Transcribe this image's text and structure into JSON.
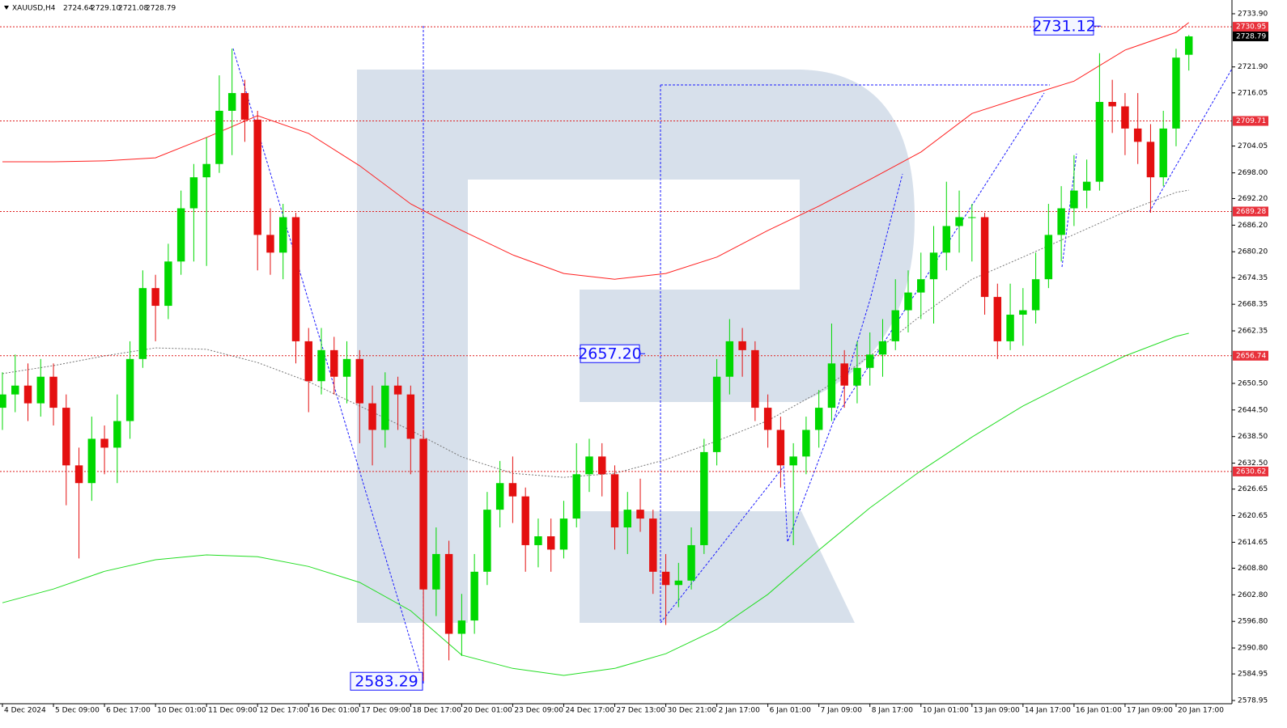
{
  "chart_data": {
    "type": "candlestick",
    "header": {
      "symbol": "XAUUSD,H4",
      "quote": [
        2724.64,
        {
          "value": 2729.1,
          "label": "2729.10"
        },
        2721.08,
        2728.79
      ]
    },
    "xlim": [
      -0.19,
      96.38
    ],
    "ylim": [
      2578.22,
      2737.0
    ],
    "yticks": [
      {
        "value": 2733.9,
        "label": "2733.90"
      },
      {
        "value": 2721.9,
        "label": "2721.90"
      },
      {
        "value": 2716.05,
        "label": "2716.05"
      },
      {
        "value": 2704.05,
        "label": "2704.05"
      },
      {
        "value": 2698.0,
        "label": "2698.00"
      },
      {
        "value": 2692.2,
        "label": "2692.20"
      },
      {
        "value": 2686.2,
        "label": "2686.20"
      },
      {
        "value": 2680.2,
        "label": "2680.20"
      },
      {
        "value": 2674.35,
        "label": "2674.35"
      },
      {
        "value": 2668.35,
        "label": "2668.35"
      },
      {
        "value": 2662.35,
        "label": "2662.35"
      },
      {
        "value": 2650.5,
        "label": "2650.50"
      },
      {
        "value": 2644.5,
        "label": "2644.50"
      },
      {
        "value": 2638.5,
        "label": "2638.50"
      },
      {
        "value": 2632.5,
        "label": "2632.50"
      },
      {
        "value": 2626.65,
        "label": "2626.65"
      },
      {
        "value": 2620.65,
        "label": "2620.65"
      },
      {
        "value": 2614.65,
        "label": "2614.65"
      },
      {
        "value": 2608.8,
        "label": "2608.80"
      },
      {
        "value": 2602.8,
        "label": "2602.80"
      },
      {
        "value": 2596.8,
        "label": "2596.80"
      },
      {
        "value": 2590.8,
        "label": "2590.80"
      },
      {
        "value": 2584.95,
        "label": "2584.95"
      },
      {
        "value": 2578.95,
        "label": "2578.95"
      }
    ],
    "xticks": [
      {
        "value": 0,
        "label": "4 Dec 2024"
      },
      {
        "value": 4,
        "label": "5 Dec 09:00"
      },
      {
        "value": 8,
        "label": "6 Dec 17:00"
      },
      {
        "value": 12,
        "label": "10 Dec 01:00"
      },
      {
        "value": 16,
        "label": "11 Dec 09:00"
      },
      {
        "value": 20,
        "label": "12 Dec 17:00"
      },
      {
        "value": 24,
        "label": "16 Dec 01:00"
      },
      {
        "value": 28,
        "label": "17 Dec 09:00"
      },
      {
        "value": 32,
        "label": "18 Dec 17:00"
      },
      {
        "value": 36,
        "label": "20 Dec 01:00"
      },
      {
        "value": 40,
        "label": "23 Dec 09:00"
      },
      {
        "value": 44,
        "label": "24 Dec 17:00"
      },
      {
        "value": 48,
        "label": "27 Dec 13:00"
      },
      {
        "value": 52,
        "label": "30 Dec 21:00"
      },
      {
        "value": 56,
        "label": "2 Jan 17:00"
      },
      {
        "value": 60,
        "label": "6 Jan 01:00"
      },
      {
        "value": 64,
        "label": "7 Jan 09:00"
      },
      {
        "value": 68,
        "label": "8 Jan 17:00"
      },
      {
        "value": 72,
        "label": "10 Jan 01:00"
      },
      {
        "value": 76,
        "label": "13 Jan 09:00"
      },
      {
        "value": 80,
        "label": "14 Jan 17:00"
      },
      {
        "value": 84,
        "label": "16 Jan 01:00"
      },
      {
        "value": 88,
        "label": "17 Jan 09:00"
      },
      {
        "value": 92,
        "label": "20 Jan 17:00"
      }
    ],
    "up_color": "#00d800",
    "down_color": "#e41010",
    "candles": [
      [
        2645,
        2653,
        2640,
        2648
      ],
      [
        2648,
        2657,
        2644,
        2650
      ],
      [
        2650,
        2655,
        2642,
        2646
      ],
      [
        2646,
        2656,
        2643,
        2652
      ],
      [
        2652,
        2655,
        2641,
        2645
      ],
      [
        2645,
        2648,
        2623,
        2632
      ],
      [
        2632,
        2636,
        2611,
        2628
      ],
      [
        2628,
        2643,
        2624,
        2638
      ],
      [
        2638,
        2641,
        2630,
        2636
      ],
      [
        2636,
        2648,
        2628,
        2642
      ],
      [
        2642,
        2660,
        2638,
        2656
      ],
      [
        2656,
        2676,
        2654,
        2672
      ],
      [
        2672,
        2675,
        2660,
        2668
      ],
      [
        2668,
        2682,
        2665,
        2678
      ],
      [
        2678,
        2694,
        2675,
        2690
      ],
      [
        2690,
        2700,
        2678,
        2697
      ],
      [
        2697,
        2706,
        2677,
        2700
      ],
      [
        2700,
        2720,
        2698,
        2712
      ],
      [
        2712,
        2726,
        2702,
        2716
      ],
      [
        2716,
        2719,
        2705,
        2710
      ],
      [
        2710,
        2712,
        2676,
        2684
      ],
      [
        2684,
        2690,
        2675,
        2680
      ],
      [
        2680,
        2691,
        2674,
        2688
      ],
      [
        2688,
        2689,
        2655,
        2660
      ],
      [
        2660,
        2663,
        2644,
        2651
      ],
      [
        2651,
        2663,
        2648,
        2658
      ],
      [
        2658,
        2661,
        2648,
        2652
      ],
      [
        2652,
        2660,
        2646,
        2656
      ],
      [
        2656,
        2658,
        2637,
        2646
      ],
      [
        2646,
        2650,
        2632,
        2640
      ],
      [
        2640,
        2653,
        2636,
        2650
      ],
      [
        2650,
        2652,
        2640,
        2648
      ],
      [
        2648,
        2650,
        2630,
        2638
      ],
      [
        2638,
        2640,
        2583.3,
        2604
      ],
      [
        2604,
        2618,
        2598,
        2612
      ],
      [
        2612,
        2615,
        2588,
        2594
      ],
      [
        2594,
        2603,
        2589,
        2597
      ],
      [
        2597,
        2612,
        2594,
        2608
      ],
      [
        2608,
        2626,
        2605,
        2622
      ],
      [
        2622,
        2633,
        2618,
        2628
      ],
      [
        2628,
        2634,
        2619,
        2625
      ],
      [
        2625,
        2627,
        2608,
        2614
      ],
      [
        2614,
        2620,
        2609,
        2616
      ],
      [
        2616,
        2620,
        2608,
        2613
      ],
      [
        2613,
        2624,
        2611,
        2620
      ],
      [
        2620,
        2637,
        2618,
        2630
      ],
      [
        2630,
        2638,
        2626,
        2634
      ],
      [
        2634,
        2637,
        2625,
        2630
      ],
      [
        2630,
        2632,
        2613,
        2618
      ],
      [
        2618,
        2626,
        2612,
        2622
      ],
      [
        2622,
        2629,
        2617,
        2620
      ],
      [
        2620,
        2622,
        2603,
        2608
      ],
      [
        2608,
        2612,
        2596,
        2605
      ],
      [
        2605,
        2610,
        2600,
        2606
      ],
      [
        2606,
        2618,
        2604,
        2614
      ],
      [
        2614,
        2638,
        2612,
        2635
      ],
      [
        2635,
        2656,
        2632,
        2652
      ],
      [
        2652,
        2665,
        2648,
        2660
      ],
      [
        2660,
        2663,
        2652,
        2658
      ],
      [
        2658,
        2660,
        2642,
        2645
      ],
      [
        2645,
        2648,
        2636,
        2640
      ],
      [
        2640,
        2643,
        2627,
        2632
      ],
      [
        2632,
        2637,
        2614,
        2634
      ],
      [
        2634,
        2643,
        2630,
        2640
      ],
      [
        2640,
        2649,
        2636,
        2645
      ],
      [
        2645,
        2664,
        2642,
        2655
      ],
      [
        2655,
        2658,
        2645,
        2650
      ],
      [
        2650,
        2660,
        2646,
        2654
      ],
      [
        2654,
        2662,
        2650,
        2657
      ],
      [
        2657,
        2665,
        2652,
        2660
      ],
      [
        2660,
        2674,
        2658,
        2667
      ],
      [
        2667,
        2676,
        2662,
        2671
      ],
      [
        2671,
        2680,
        2665,
        2674
      ],
      [
        2674,
        2686,
        2664,
        2680
      ],
      [
        2680,
        2696,
        2676,
        2686
      ],
      [
        2686,
        2694,
        2680,
        2688
      ],
      [
        2688,
        2691,
        2678,
        2688
      ],
      [
        2688,
        2689,
        2666,
        2670
      ],
      [
        2670,
        2673,
        2656,
        2660
      ],
      [
        2660,
        2673,
        2658,
        2666
      ],
      [
        2666,
        2672,
        2659,
        2667
      ],
      [
        2667,
        2680,
        2664,
        2674
      ],
      [
        2674,
        2691,
        2672,
        2684
      ],
      [
        2684,
        2695,
        2678,
        2690
      ],
      [
        2690,
        2702,
        2686,
        2694
      ],
      [
        2694,
        2701,
        2690,
        2696
      ],
      [
        2696,
        2725,
        2694,
        2714
      ],
      [
        2714,
        2719,
        2707,
        2713
      ],
      [
        2713,
        2716,
        2702,
        2708
      ],
      [
        2708,
        2716,
        2700,
        2705
      ],
      [
        2705,
        2709,
        2689,
        2697
      ],
      [
        2697,
        2712,
        2695,
        2708
      ],
      [
        2708,
        2726,
        2704,
        2724
      ],
      [
        2724.64,
        2729.1,
        2721.08,
        2728.79
      ]
    ],
    "lines": [
      {
        "color": "#ff2020",
        "style": "solid",
        "x": [
          0,
          4,
          8,
          12,
          16,
          20,
          24,
          28,
          32,
          36,
          40,
          44,
          48,
          52,
          56,
          60,
          64,
          68,
          72,
          76,
          80,
          84,
          88,
          92,
          93
        ],
        "values": [
          2700.5,
          2700.5,
          2700.7,
          2701.4,
          2706.0,
          2710.9,
          2706.9,
          2699.6,
          2691.0,
          2685.0,
          2679.5,
          2675.3,
          2674.0,
          2675.3,
          2679.0,
          2685.0,
          2690.5,
          2696.5,
          2702.7,
          2711.4,
          2715.1,
          2718.7,
          2725.7,
          2729.7,
          2731.9
        ]
      },
      {
        "color": "#22dd22",
        "style": "solid",
        "x": [
          0,
          4,
          8,
          12,
          16,
          20,
          24,
          28,
          32,
          36,
          40,
          44,
          48,
          52,
          56,
          60,
          64,
          68,
          72,
          76,
          80,
          84,
          88,
          92,
          93
        ],
        "values": [
          2601.0,
          2604.1,
          2608.1,
          2610.7,
          2611.8,
          2611.4,
          2609.2,
          2605.6,
          2599.2,
          2589.2,
          2586.2,
          2584.6,
          2586.2,
          2589.5,
          2595.0,
          2602.9,
          2612.9,
          2622.4,
          2630.8,
          2638.4,
          2645.4,
          2651.2,
          2656.7,
          2661.1,
          2661.8
        ]
      },
      {
        "color": "#777777",
        "style": "dotted",
        "x": [
          0,
          4,
          8,
          12,
          16,
          20,
          24,
          28,
          32,
          36,
          40,
          44,
          48,
          52,
          56,
          60,
          64,
          68,
          72,
          76,
          80,
          84,
          88,
          92,
          93
        ],
        "values": [
          2652.7,
          2654.5,
          2656.7,
          2658.5,
          2658.2,
          2655.2,
          2650.9,
          2645.4,
          2639.9,
          2633.9,
          2630.2,
          2629.3,
          2630.2,
          2633.3,
          2637.5,
          2642.1,
          2648.5,
          2656.7,
          2665.8,
          2674.0,
          2679.0,
          2684.1,
          2689.2,
          2693.6,
          2694.1
        ]
      }
    ],
    "levels": [
      2730.95,
      2709.71,
      2689.28,
      2656.74,
      2630.62
    ],
    "annotations": [
      2583.29,
      2657.2,
      2731.12
    ],
    "annotation_labels": [
      "2583.29",
      "2657.20",
      "2731.12"
    ]
  }
}
